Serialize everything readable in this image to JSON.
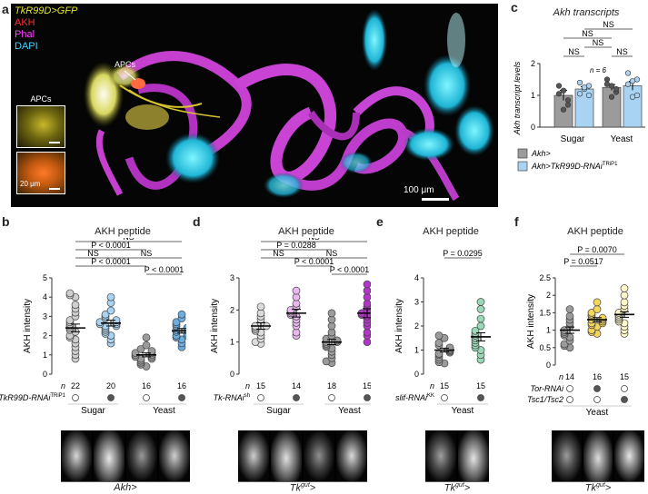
{
  "panel_a": {
    "label": "a",
    "legend": [
      {
        "text": "TkR99D>GFP",
        "color": "#e6e61a",
        "italic_part": "TkR99D"
      },
      {
        "text": "AKH",
        "color": "#ff3030"
      },
      {
        "text": "Phal",
        "color": "#ff40ff"
      },
      {
        "text": "DAPI",
        "color": "#3fd3ff"
      }
    ],
    "apc_callout": "APCs",
    "inset_label": "APCs",
    "inset_scale": "20 μm",
    "scale_bar": "100 μm"
  },
  "panel_c": {
    "label": "c",
    "title": "Akh transcripts"
  },
  "panel_b": {
    "label": "b",
    "title": "AKH peptide"
  },
  "panel_d": {
    "label": "d",
    "title": "AKH peptide"
  },
  "panel_e": {
    "label": "e",
    "title": "AKH peptide"
  },
  "panel_f": {
    "label": "f",
    "title": "AKH peptide"
  },
  "chart_data": [
    {
      "id": "c",
      "type": "bar",
      "title": "Akh transcripts",
      "ylabel": "Akh transcript levels",
      "ylim": [
        0,
        2
      ],
      "yticks": [
        0,
        1,
        2
      ],
      "groups": [
        "Sugar",
        "Yeast"
      ],
      "n_label": "n = 6",
      "legend": [
        "Akh>",
        "Akh>TkR99D-RNAi"
      ],
      "legend_sup": "TRiP1",
      "series_colors": [
        "#9b9b9b",
        "#a9d3f2"
      ],
      "bars": [
        {
          "group": "Sugar",
          "series": 0,
          "mean": 1.0,
          "sem": 0.16,
          "points": [
            1.3,
            1.15,
            0.7,
            1.05,
            0.55,
            0.85
          ]
        },
        {
          "group": "Sugar",
          "series": 1,
          "mean": 1.2,
          "sem": 0.07,
          "points": [
            1.4,
            1.2,
            1.3,
            1.05,
            1.25,
            1.0
          ]
        },
        {
          "group": "Yeast",
          "series": 0,
          "mean": 1.25,
          "sem": 0.09,
          "points": [
            1.5,
            1.3,
            1.1,
            1.35,
            0.95,
            1.2
          ]
        },
        {
          "group": "Yeast",
          "series": 1,
          "mean": 1.3,
          "sem": 0.14,
          "points": [
            1.7,
            1.45,
            1.0,
            1.35,
            0.95,
            1.5
          ]
        }
      ],
      "comparisons": [
        {
          "from": 0,
          "to": 1,
          "text": "NS"
        },
        {
          "from": 2,
          "to": 3,
          "text": "NS"
        },
        {
          "from": 1,
          "to": 2,
          "text": "NS"
        },
        {
          "from": 0,
          "to": 2,
          "text": "NS"
        },
        {
          "from": 1,
          "to": 3,
          "text": "NS"
        }
      ]
    },
    {
      "id": "b",
      "type": "scatter",
      "ylabel": "AKH intensity",
      "ylim": [
        0,
        5
      ],
      "yticks": [
        0,
        1,
        2,
        3,
        4,
        5
      ],
      "groups": [
        {
          "n": "22",
          "filled": false,
          "fill": "#cfcfcf",
          "mean": 2.4,
          "sem": 0.2,
          "points": [
            4.2,
            4.1,
            4.0,
            3.6,
            3.4,
            3.2,
            3.0,
            2.8,
            2.7,
            2.6,
            2.5,
            2.4,
            2.3,
            2.2,
            2.0,
            1.9,
            1.8,
            1.6,
            1.4,
            1.2,
            1.0,
            0.8
          ]
        },
        {
          "n": "20",
          "filled": true,
          "fill": "#a9d3f2",
          "mean": 2.65,
          "sem": 0.15,
          "points": [
            4.0,
            3.7,
            3.3,
            3.1,
            3.0,
            2.9,
            2.8,
            2.7,
            2.7,
            2.6,
            2.6,
            2.5,
            2.5,
            2.4,
            2.3,
            2.2,
            2.1,
            2.0,
            1.8,
            1.6
          ]
        },
        {
          "n": "16",
          "filled": false,
          "fill": "#9b9b9b",
          "mean": 1.0,
          "sem": 0.1,
          "points": [
            1.9,
            1.5,
            1.3,
            1.2,
            1.1,
            1.1,
            1.0,
            1.0,
            0.9,
            0.9,
            0.8,
            0.8,
            0.7,
            0.6,
            0.5,
            0.4
          ]
        },
        {
          "n": "16",
          "filled": true,
          "fill": "#6aaee0",
          "mean": 2.25,
          "sem": 0.12,
          "points": [
            3.1,
            2.9,
            2.7,
            2.6,
            2.5,
            2.4,
            2.3,
            2.3,
            2.2,
            2.1,
            2.0,
            2.0,
            1.9,
            1.8,
            1.6,
            1.4
          ]
        }
      ],
      "conditions": [
        "Sugar",
        "Yeast"
      ],
      "row_label": "TkR99D-RNAi",
      "row_label_sup": "TRiP1",
      "n_prefix": "n",
      "genotype": "Akh>",
      "comparisons": [
        {
          "from": 2,
          "to": 3,
          "text": "P < 0.0001"
        },
        {
          "from": 0,
          "to": 2,
          "text": "P < 0.0001"
        },
        {
          "from": 0,
          "to": 1,
          "text": "NS"
        },
        {
          "from": 0,
          "to": 2,
          "text": "P < 0.0001"
        },
        {
          "from": 1,
          "to": 3,
          "text": "NS"
        },
        {
          "from": 0,
          "to": 3,
          "text": "NS"
        }
      ]
    },
    {
      "id": "d",
      "type": "scatter",
      "ylabel": "AKH intensity",
      "ylim": [
        0,
        3
      ],
      "yticks": [
        0,
        1,
        2,
        3
      ],
      "groups": [
        {
          "n": "15",
          "filled": false,
          "fill": "#dcdcdc",
          "mean": 1.5,
          "sem": 0.1,
          "points": [
            2.1,
            1.9,
            1.8,
            1.7,
            1.6,
            1.5,
            1.5,
            1.45,
            1.4,
            1.35,
            1.3,
            1.2,
            1.1,
            1.0,
            0.95
          ]
        },
        {
          "n": "14",
          "filled": true,
          "fill": "#e8b8ee",
          "mean": 1.9,
          "sem": 0.12,
          "points": [
            2.6,
            2.4,
            2.2,
            2.1,
            2.0,
            1.95,
            1.9,
            1.85,
            1.8,
            1.7,
            1.6,
            1.5,
            1.3,
            1.2
          ]
        },
        {
          "n": "18",
          "filled": false,
          "fill": "#9b9b9b",
          "mean": 1.0,
          "sem": 0.08,
          "points": [
            1.9,
            1.7,
            1.5,
            1.3,
            1.2,
            1.1,
            1.05,
            1.0,
            1.0,
            0.95,
            0.9,
            0.85,
            0.8,
            0.7,
            0.6,
            0.5,
            0.4,
            0.35
          ]
        },
        {
          "n": "15",
          "filled": true,
          "fill": "#b335c9",
          "mean": 1.9,
          "sem": 0.14,
          "points": [
            2.8,
            2.6,
            2.4,
            2.2,
            2.1,
            2.0,
            1.9,
            1.85,
            1.8,
            1.7,
            1.6,
            1.5,
            1.3,
            1.2,
            1.0
          ]
        }
      ],
      "conditions": [
        "Sugar",
        "Yeast"
      ],
      "row_label": "Tk-RNAi",
      "row_label_sup": "sh",
      "n_prefix": "n",
      "genotype": "Tk",
      "genotype_sup": "gut",
      "genotype_suffix": ">",
      "comparisons": [
        {
          "from": 2,
          "to": 3,
          "text": "P < 0.0001"
        },
        {
          "from": 1,
          "to": 2,
          "text": "P < 0.0001"
        },
        {
          "from": 0,
          "to": 1,
          "text": "NS"
        },
        {
          "from": 0,
          "to": 2,
          "text": "P = 0.0288"
        },
        {
          "from": 1,
          "to": 3,
          "text": "NS"
        },
        {
          "from": 0,
          "to": 3,
          "text": "NS"
        }
      ]
    },
    {
      "id": "e",
      "type": "scatter",
      "ylabel": "AKH intensity",
      "ylim": [
        0,
        4
      ],
      "yticks": [
        0,
        1,
        2,
        3,
        4
      ],
      "groups": [
        {
          "n": "15",
          "filled": false,
          "fill": "#9b9b9b",
          "mean": 1.0,
          "sem": 0.08,
          "points": [
            1.6,
            1.5,
            1.3,
            1.2,
            1.1,
            1.05,
            1.0,
            0.95,
            0.9,
            0.85,
            0.8,
            0.7,
            0.6,
            0.5,
            0.45
          ]
        },
        {
          "n": "15",
          "filled": true,
          "fill": "#9ad9b8",
          "mean": 1.55,
          "sem": 0.17,
          "points": [
            3.0,
            2.7,
            2.3,
            2.0,
            1.8,
            1.7,
            1.6,
            1.5,
            1.4,
            1.3,
            1.2,
            1.1,
            1.0,
            0.8,
            0.6
          ]
        }
      ],
      "conditions": [
        "Yeast"
      ],
      "row_label": "slif-RNAi",
      "row_label_sup": "KK",
      "n_prefix": "n",
      "genotype": "Tk",
      "genotype_sup": "gut",
      "genotype_suffix": ">",
      "comparisons": [
        {
          "from": 0,
          "to": 1,
          "text": "P = 0.0295"
        }
      ]
    },
    {
      "id": "f",
      "type": "scatter",
      "ylabel": "AKH intensity",
      "ylim": [
        0,
        2.5
      ],
      "yticks": [
        0,
        0.5,
        1.0,
        1.5,
        2.0,
        2.5
      ],
      "groups": [
        {
          "n": "14",
          "filled": false,
          "fill": "#9b9b9b",
          "mean": 1.0,
          "sem": 0.09,
          "points": [
            1.6,
            1.4,
            1.3,
            1.2,
            1.1,
            1.0,
            0.95,
            0.9,
            0.85,
            0.8,
            0.7,
            0.6,
            0.55,
            0.5
          ]
        },
        {
          "n": "16",
          "filled": true,
          "fill": "#f4d65b",
          "mean": 1.3,
          "sem": 0.06,
          "points": [
            1.8,
            1.6,
            1.5,
            1.45,
            1.4,
            1.35,
            1.3,
            1.3,
            1.25,
            1.2,
            1.2,
            1.15,
            1.1,
            1.0,
            0.95,
            0.9
          ]
        },
        {
          "n": "15",
          "filled": false,
          "fill": "#fdf7c8",
          "mean": 1.45,
          "sem": 0.08,
          "points": [
            2.2,
            2.0,
            1.8,
            1.7,
            1.6,
            1.5,
            1.45,
            1.4,
            1.35,
            1.3,
            1.25,
            1.2,
            1.1,
            1.0,
            0.9
          ]
        }
      ],
      "conditions": [
        "Yeast"
      ],
      "rows": [
        {
          "label": "Tor-RNAi",
          "marks": [
            false,
            true,
            false
          ]
        },
        {
          "label": "Tsc1/Tsc2",
          "marks": [
            false,
            false,
            true
          ]
        }
      ],
      "n_prefix": "n",
      "genotype": "Tk",
      "genotype_sup": "gut",
      "genotype_suffix": ">",
      "comparisons": [
        {
          "from": 0,
          "to": 1,
          "text": "P = 0.0517"
        },
        {
          "from": 0,
          "to": 2,
          "text": "P = 0.0070"
        }
      ]
    }
  ]
}
